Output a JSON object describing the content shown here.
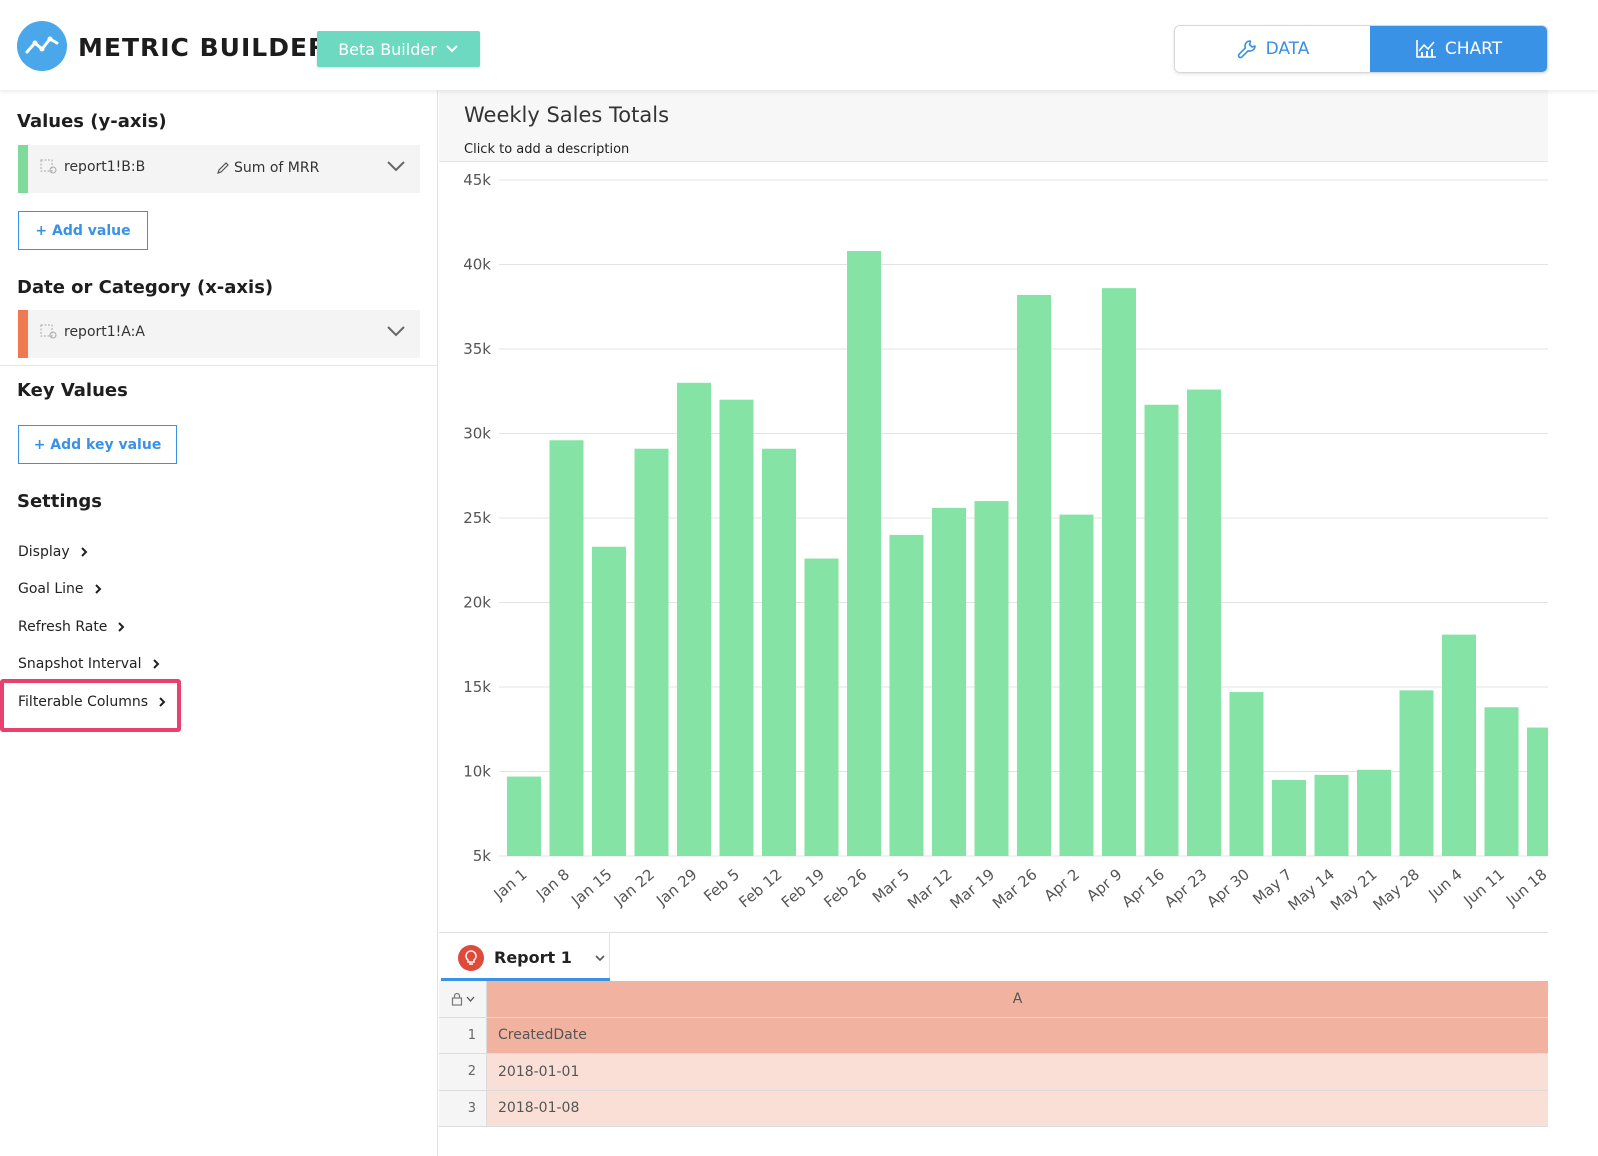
{
  "header": {
    "app_title": "METRIC BUILDER",
    "beta_label": "Beta Builder",
    "data_tab": "DATA",
    "chart_tab": "CHART"
  },
  "sidebar": {
    "values_title": "Values (y-axis)",
    "value_field": {
      "source": "report1!B:B",
      "aggregation": "Sum of MRR",
      "color": "#7ed99a"
    },
    "add_value": "+ Add value",
    "category_title": "Date or Category (x-axis)",
    "category_field": {
      "source": "report1!A:A",
      "color": "#ef7a4f"
    },
    "key_values_title": "Key Values",
    "add_key_value": "+ Add key value",
    "settings_title": "Settings",
    "settings": [
      "Display",
      "Goal Line",
      "Refresh Rate",
      "Snapshot Interval",
      "Filterable Columns"
    ]
  },
  "chart_header": {
    "title": "Weekly Sales Totals",
    "description": "Click to add a description"
  },
  "chart_data": {
    "type": "bar",
    "bar_color": "#84e3a5",
    "ylim": [
      5000,
      45000
    ],
    "y_ticks": [
      "5k",
      "10k",
      "15k",
      "20k",
      "25k",
      "30k",
      "35k",
      "40k",
      "45k"
    ],
    "categories": [
      "Jan 1",
      "Jan 8",
      "Jan 15",
      "Jan 22",
      "Jan 29",
      "Feb 5",
      "Feb 12",
      "Feb 19",
      "Feb 26",
      "Mar 5",
      "Mar 12",
      "Mar 19",
      "Mar 26",
      "Apr 2",
      "Apr 9",
      "Apr 16",
      "Apr 23",
      "Apr 30",
      "May 7",
      "May 14",
      "May 21",
      "May 28",
      "Jun 4",
      "Jun 11",
      "Jun 18"
    ],
    "values": [
      9700,
      29600,
      23300,
      29100,
      33000,
      32000,
      29100,
      22600,
      40800,
      24000,
      25600,
      26000,
      38200,
      25200,
      38600,
      31700,
      32600,
      14700,
      9500,
      9800,
      10100,
      14800,
      18100,
      13800,
      12600
    ]
  },
  "sheet": {
    "tab_label": "Report 1",
    "column_header": "A",
    "rows": [
      {
        "n": "1",
        "value": "CreatedDate"
      },
      {
        "n": "2",
        "value": "2018-01-01"
      },
      {
        "n": "3",
        "value": "2018-01-08"
      }
    ]
  }
}
